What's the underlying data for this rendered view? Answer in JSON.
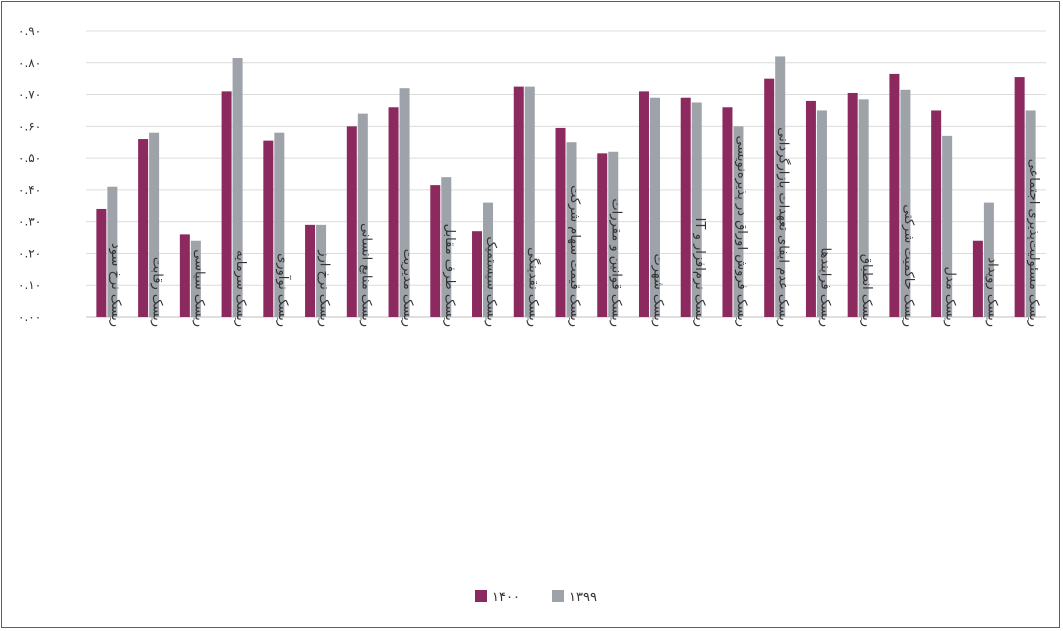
{
  "chart_data": {
    "type": "bar",
    "title": "",
    "xlabel": "",
    "ylabel": "",
    "ylim": [
      0,
      0.9
    ],
    "y_ticks": [
      0,
      0.1,
      0.2,
      0.3,
      0.4,
      0.5,
      0.6,
      0.7,
      0.8,
      0.9
    ],
    "y_tick_labels": [
      "۰.۰۰",
      "۰.۱۰",
      "۰.۲۰",
      "۰.۳۰",
      "۰.۴۰",
      "۰.۵۰",
      "۰.۶۰",
      "۰.۷۰",
      "۰.۸۰",
      "۰.۹۰"
    ],
    "grid": true,
    "legend_position": "bottom",
    "categories": [
      "ریسک نرخ سود",
      "ریسک رقابت",
      "ریسک سیاسی",
      "ریسک سرمایه",
      "ریسک نوآوری",
      "ریسک نرخ ارز",
      "ریسک منابع انسانی",
      "ریسک مدیریت",
      "ریسک طرف مقابل",
      "ریسک سیستمیک",
      "ریسک نقدینگی",
      "ریسک قیمت سهام شرکت",
      "ریسک قوانین و مقررات",
      "ریسک شهرت",
      "ریسک نرم‌افزار و IT",
      "ریسک فروش اوراق در پذیره‌نویسی",
      "ریسک عدم ایفای تعهدات بازارگردانی",
      "ریسک فرایندها",
      "ریسک انطباق",
      "ریسک حاکمیت شرکتی",
      "ریسک مدل",
      "ریسک رویداد",
      "ریسک مسئولیت‌پذیری اجتماعی"
    ],
    "series": [
      {
        "name": "۱۴۰۰",
        "color": "#8c2a5f",
        "values": [
          0.34,
          0.56,
          0.26,
          0.71,
          0.555,
          0.29,
          0.6,
          0.66,
          0.415,
          0.27,
          0.725,
          0.595,
          0.515,
          0.71,
          0.69,
          0.66,
          0.75,
          0.68,
          0.705,
          0.765,
          0.65,
          0.24,
          0.755
        ]
      },
      {
        "name": "۱۳۹۹",
        "color": "#9ea2a9",
        "values": [
          0.41,
          0.58,
          0.24,
          0.815,
          0.58,
          0.29,
          0.64,
          0.72,
          0.44,
          0.36,
          0.725,
          0.55,
          0.52,
          0.69,
          0.675,
          0.6,
          0.82,
          0.65,
          0.685,
          0.715,
          0.57,
          0.36,
          0.65
        ]
      }
    ]
  }
}
